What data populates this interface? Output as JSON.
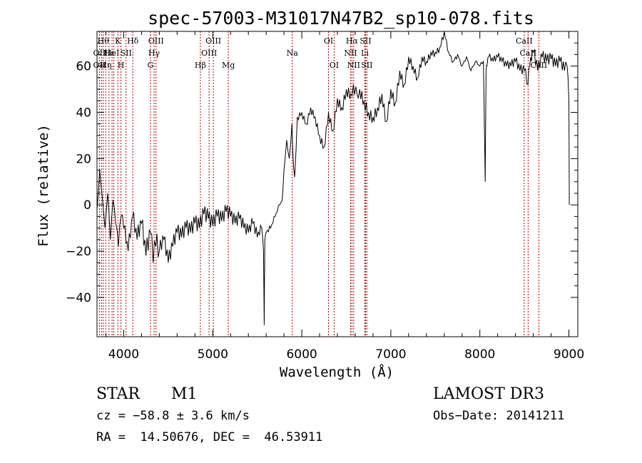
{
  "chart_data": {
    "type": "line",
    "title": "spec-57003-M31017N47B2_sp10-078.fits",
    "xlabel": "Wavelength (Å)",
    "ylabel": "Flux (relative)",
    "xlim": [
      3700,
      9100
    ],
    "ylim": [
      -57,
      75
    ],
    "xticks": [
      4000,
      5000,
      6000,
      7000,
      8000,
      9000
    ],
    "yticks": [
      -40,
      -20,
      0,
      20,
      40,
      60
    ],
    "series": [
      {
        "name": "flux",
        "x": [
          3700,
          3730,
          3760,
          3790,
          3820,
          3850,
          3880,
          3910,
          3940,
          3970,
          4000,
          4050,
          4100,
          4150,
          4200,
          4250,
          4300,
          4330,
          4360,
          4400,
          4450,
          4500,
          4550,
          4600,
          4650,
          4700,
          4750,
          4800,
          4850,
          4900,
          4950,
          5000,
          5050,
          5100,
          5150,
          5200,
          5250,
          5300,
          5350,
          5400,
          5450,
          5500,
          5550,
          5570,
          5578,
          5585,
          5600,
          5650,
          5700,
          5750,
          5780,
          5800,
          5830,
          5860,
          5890,
          5900,
          5920,
          5950,
          6000,
          6050,
          6100,
          6150,
          6200,
          6250,
          6300,
          6350,
          6400,
          6450,
          6500,
          6550,
          6580,
          6620,
          6650,
          6700,
          6750,
          6800,
          6850,
          6900,
          6950,
          7000,
          7050,
          7100,
          7150,
          7200,
          7250,
          7300,
          7350,
          7400,
          7450,
          7500,
          7550,
          7600,
          7650,
          7700,
          7750,
          7800,
          7850,
          7900,
          7950,
          8000,
          8040,
          8060,
          8070,
          8080,
          8100,
          8150,
          8200,
          8250,
          8300,
          8350,
          8400,
          8450,
          8500,
          8540,
          8560,
          8580,
          8600,
          8650,
          8700,
          8750,
          8800,
          8850,
          8900,
          8950,
          8980,
          9000,
          9005
        ],
        "values": [
          -2,
          15,
          3,
          -10,
          5,
          -15,
          2,
          -8,
          -18,
          -5,
          -10,
          -20,
          -5,
          -15,
          -8,
          -22,
          -12,
          -25,
          -18,
          -20,
          -15,
          -25,
          -18,
          -12,
          -14,
          -10,
          -12,
          -8,
          -10,
          -4,
          -6,
          -9,
          -5,
          -7,
          -3,
          -5,
          -8,
          -6,
          -10,
          -12,
          -8,
          -14,
          -10,
          -20,
          -52,
          -15,
          -12,
          -10,
          -5,
          0,
          2,
          15,
          28,
          20,
          35,
          22,
          12,
          38,
          40,
          35,
          42,
          38,
          30,
          25,
          40,
          32,
          46,
          42,
          50,
          48,
          52,
          48,
          50,
          45,
          40,
          38,
          42,
          48,
          36,
          50,
          44,
          58,
          52,
          64,
          60,
          55,
          64,
          62,
          66,
          66,
          68,
          75,
          66,
          62,
          65,
          60,
          64,
          58,
          62,
          60,
          62,
          10,
          58,
          60,
          64,
          62,
          64,
          62,
          60,
          60,
          62,
          58,
          58,
          52,
          60,
          62,
          66,
          58,
          64,
          62,
          63,
          60,
          62,
          58,
          60,
          45,
          0
        ]
      }
    ],
    "line_marks": [
      {
        "x": 3727,
        "labels": [
          {
            "text": "OII",
            "row": 2
          },
          {
            "text": "OII",
            "row": 3
          }
        ]
      },
      {
        "x": 3750,
        "labels": []
      },
      {
        "x": 3770,
        "labels": [
          {
            "text": "Hθ",
            "row": 1
          }
        ]
      },
      {
        "x": 3798,
        "labels": [
          {
            "text": "Hη",
            "row": 3
          }
        ]
      },
      {
        "x": 3835,
        "labels": [
          {
            "text": "Hε",
            "row": 2
          }
        ]
      },
      {
        "x": 3869,
        "labels": [
          {
            "text": "HeI",
            "row": 2
          }
        ]
      },
      {
        "x": 3889,
        "labels": []
      },
      {
        "x": 3934,
        "labels": [
          {
            "text": "K",
            "row": 1
          }
        ]
      },
      {
        "x": 3969,
        "labels": [
          {
            "text": "H",
            "row": 3
          }
        ]
      },
      {
        "x": 4026,
        "labels": [
          {
            "text": "SII",
            "row": 2
          }
        ]
      },
      {
        "x": 4102,
        "labels": [
          {
            "text": "Hδ",
            "row": 1
          }
        ]
      },
      {
        "x": 4300,
        "labels": [
          {
            "text": "G",
            "row": 3
          }
        ]
      },
      {
        "x": 4341,
        "labels": [
          {
            "text": "Hγ",
            "row": 2
          }
        ]
      },
      {
        "x": 4363,
        "labels": [
          {
            "text": "OIII",
            "row": 1
          }
        ]
      },
      {
        "x": 4861,
        "labels": [
          {
            "text": "Hβ",
            "row": 3
          }
        ]
      },
      {
        "x": 4959,
        "labels": [
          {
            "text": "OIII",
            "row": 2
          }
        ]
      },
      {
        "x": 5007,
        "labels": [
          {
            "text": "OIII",
            "row": 1
          }
        ]
      },
      {
        "x": 5175,
        "labels": [
          {
            "text": "Mg",
            "row": 3
          }
        ]
      },
      {
        "x": 5893,
        "labels": [
          {
            "text": "Na",
            "row": 2
          }
        ]
      },
      {
        "x": 6300,
        "labels": [
          {
            "text": "OI",
            "row": 1
          }
        ]
      },
      {
        "x": 6363,
        "labels": [
          {
            "text": "OI",
            "row": 3
          }
        ]
      },
      {
        "x": 6548,
        "labels": [
          {
            "text": "NII",
            "row": 2
          }
        ]
      },
      {
        "x": 6563,
        "labels": [
          {
            "text": "Hα",
            "row": 1
          }
        ]
      },
      {
        "x": 6583,
        "labels": [
          {
            "text": "NII",
            "row": 3
          }
        ]
      },
      {
        "x": 6708,
        "labels": [
          {
            "text": "Li",
            "row": 2
          }
        ]
      },
      {
        "x": 6716,
        "labels": [
          {
            "text": "SII",
            "row": 1
          }
        ]
      },
      {
        "x": 6731,
        "labels": [
          {
            "text": "SII",
            "row": 3
          }
        ]
      },
      {
        "x": 8498,
        "labels": [
          {
            "text": "CaII",
            "row": 1
          }
        ]
      },
      {
        "x": 8542,
        "labels": [
          {
            "text": "CaII",
            "row": 2
          }
        ]
      },
      {
        "x": 8662,
        "labels": [
          {
            "text": "CaII",
            "row": 3
          }
        ]
      }
    ]
  },
  "info": {
    "class": "STAR",
    "subclass": "M1",
    "survey": "LAMOST DR3",
    "cz": "cz = −58.8 ± 3.6 km/s",
    "obs_date": "Obs−Date: 20141211",
    "coords": "RA =  14.50676, DEC =  46.53911"
  }
}
